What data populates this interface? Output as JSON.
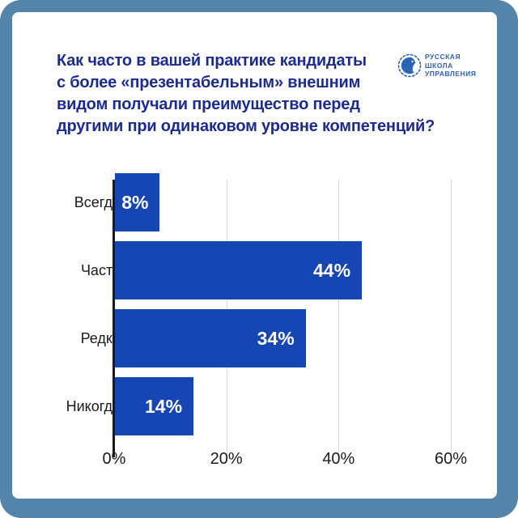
{
  "title": {
    "lines": [
      "Как часто в вашей практике кандидаты",
      "с более «презентабельным» внешним",
      "видом получали преимущество перед",
      "другими при одинаковом уровне компетенций?"
    ]
  },
  "logo": {
    "icon": "rsu-globe-face-icon",
    "lines": [
      "РУССКАЯ",
      "ШКОЛА",
      "УПРАВЛЕНИЯ"
    ]
  },
  "colors": {
    "frame": "#5584ab",
    "card_bg": "#ffffff",
    "title": "#1c2b8f",
    "logo": "#2d63b4",
    "bar": "#1645b4",
    "gridline": "#d9d9d9",
    "axis": "#1a1a1a",
    "category_label": "#191919",
    "value_label": "#ffffff",
    "tick_label": "#1b1b1b"
  },
  "chart_data": {
    "type": "bar",
    "orientation": "horizontal",
    "title": "Как часто в вашей практике кандидаты с более «презентабельным» внешним видом получали преимущество перед другими при одинаковом уровне компетенций?",
    "categories": [
      "Всегда",
      "Часто",
      "Редко",
      "Никогда"
    ],
    "values": [
      8,
      44,
      34,
      14
    ],
    "value_labels": [
      "8%",
      "44%",
      "34%",
      "14%"
    ],
    "xlabel": "",
    "ylabel": "",
    "xlim": [
      0,
      60
    ],
    "x_ticks": [
      {
        "value": 0,
        "label": "0%"
      },
      {
        "value": 20,
        "label": "20%"
      },
      {
        "value": 40,
        "label": "40%"
      },
      {
        "value": 60,
        "label": "60%"
      }
    ],
    "grid": true,
    "legend": false
  }
}
